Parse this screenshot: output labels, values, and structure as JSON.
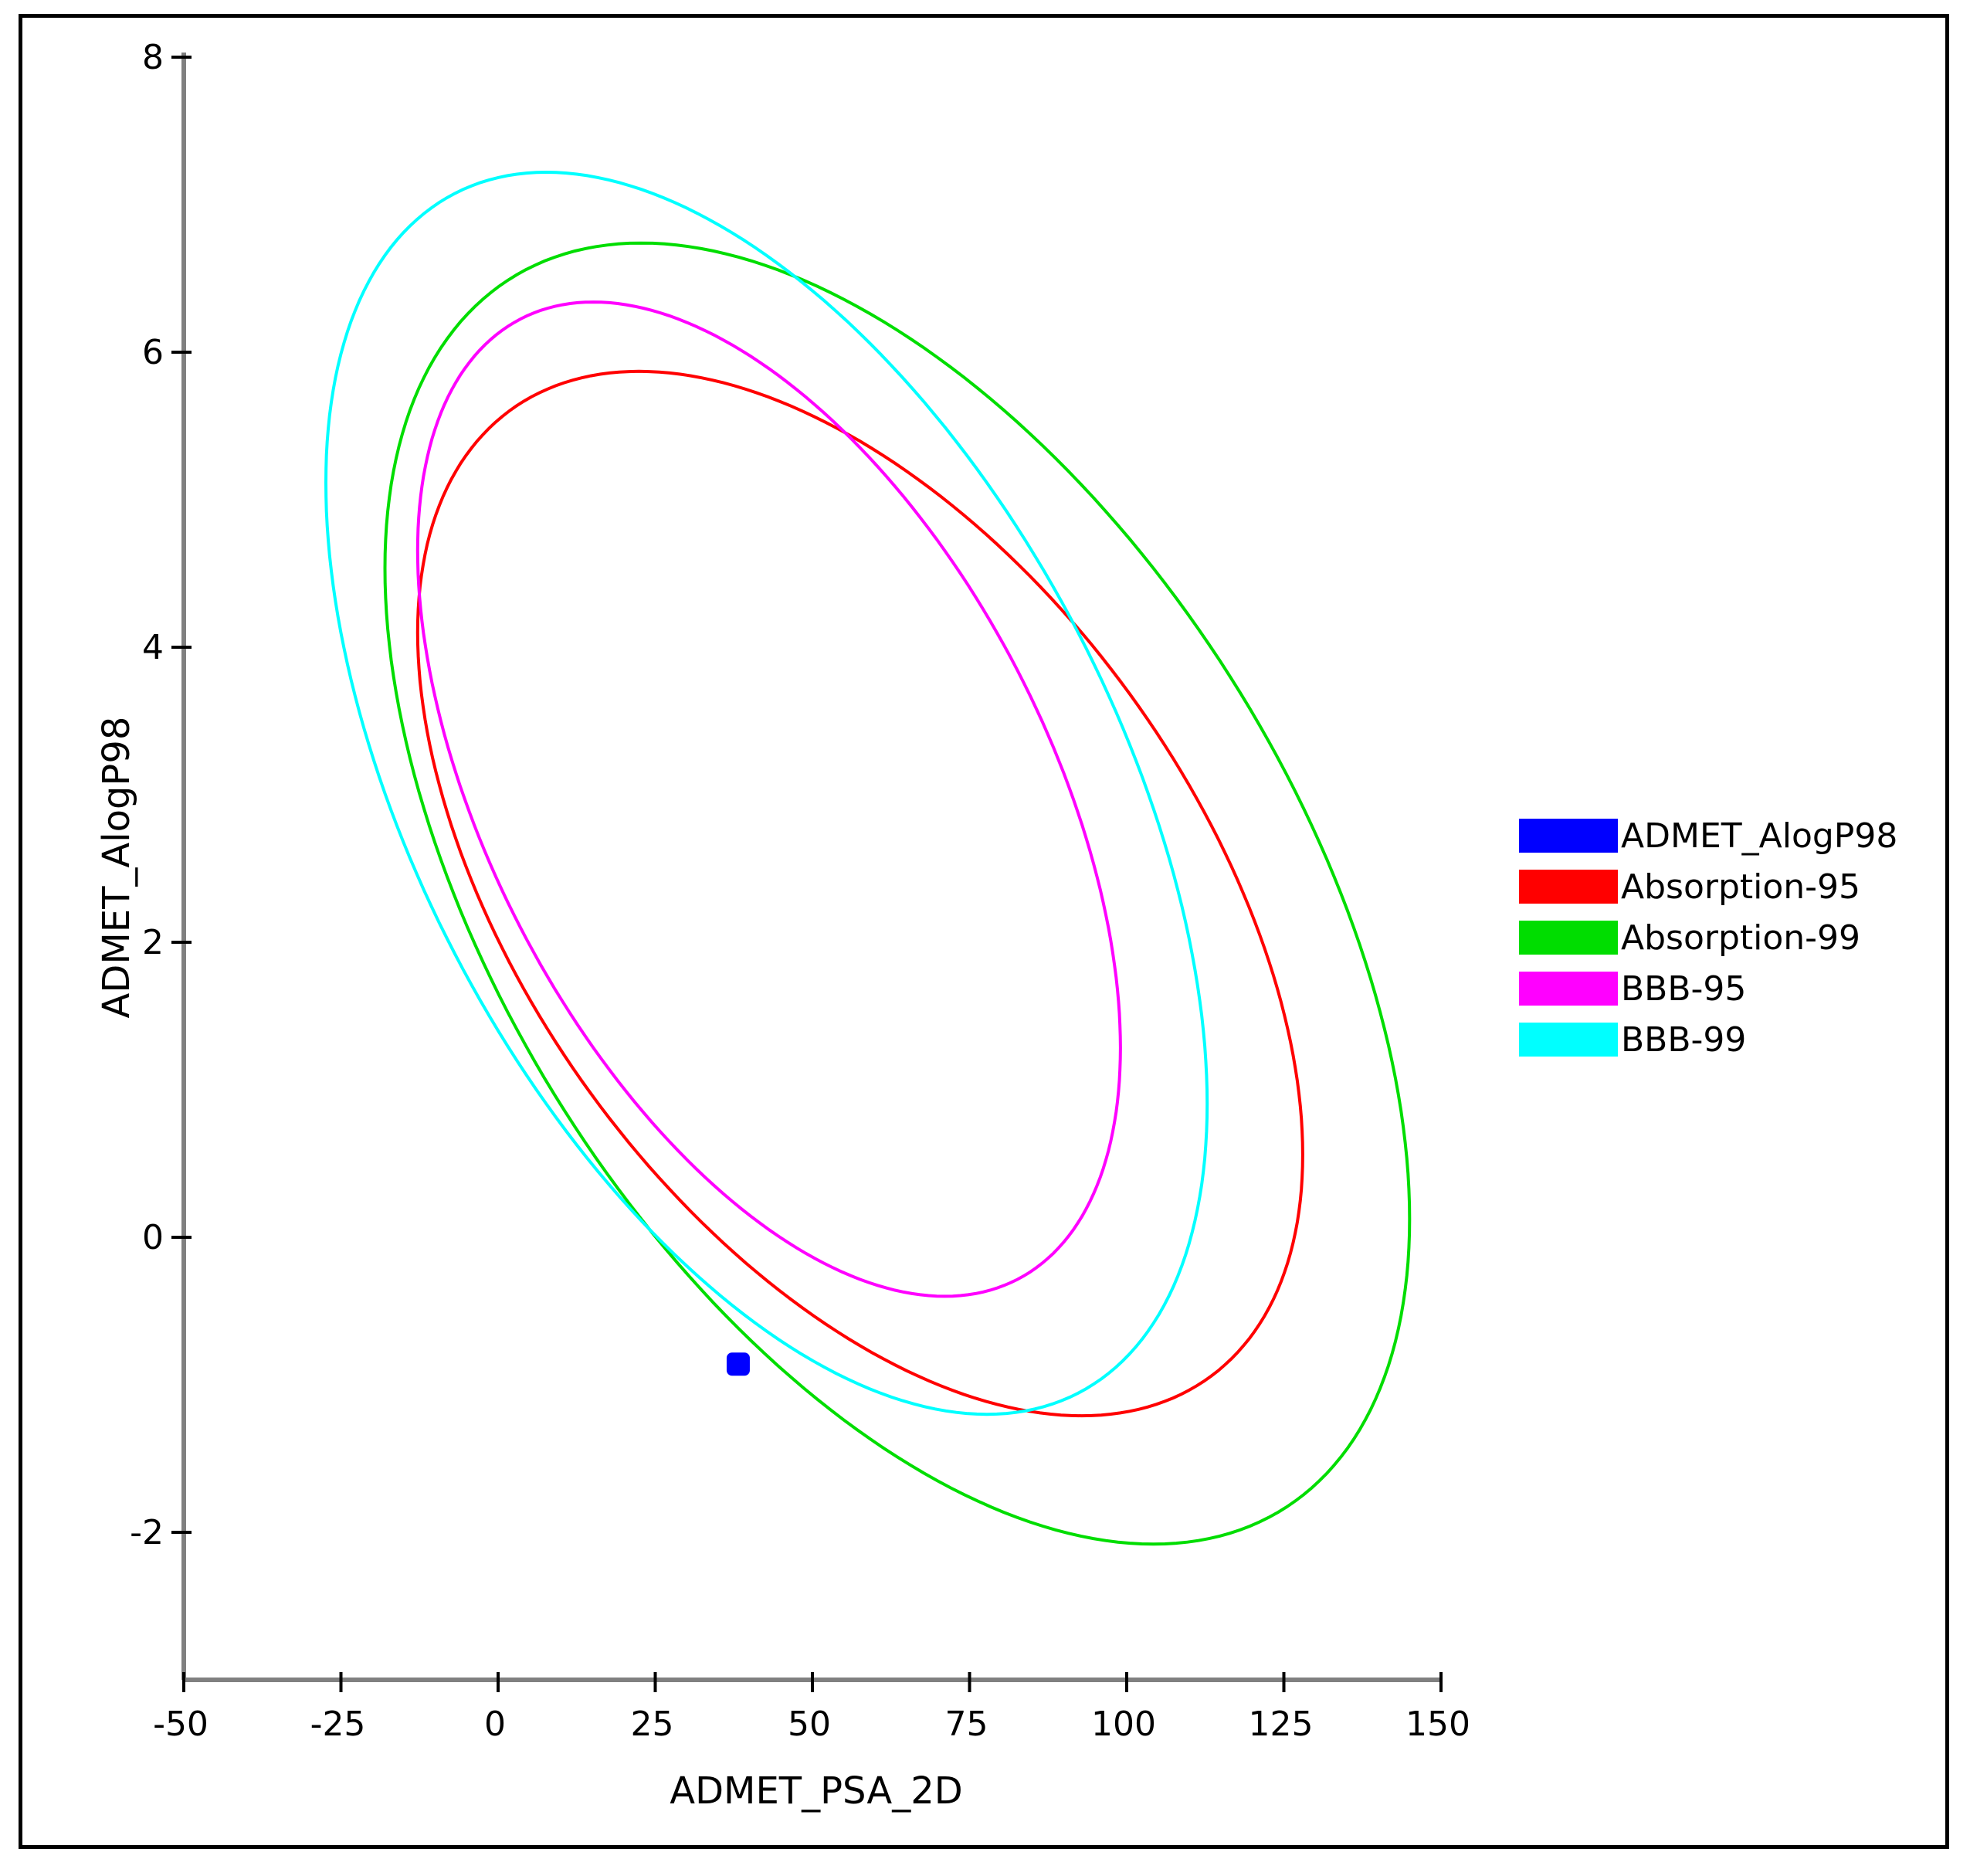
{
  "chart_data": {
    "type": "scatter",
    "title": "",
    "xlabel": "ADMET_PSA_2D",
    "ylabel": "ADMET_AlogP98",
    "xlim": [
      -50,
      150
    ],
    "ylim": [
      -3,
      8
    ],
    "x_ticks": [
      -50,
      -25,
      0,
      25,
      50,
      75,
      100,
      125,
      150
    ],
    "x_tick_labels": [
      "-50",
      "-25",
      "0",
      "25",
      "50",
      "75",
      "100",
      "125",
      "150"
    ],
    "y_ticks": [
      -2,
      0,
      2,
      4,
      6,
      8
    ],
    "y_tick_labels": [
      "-2",
      "0",
      "2",
      "4",
      "6",
      "8"
    ],
    "grid": false,
    "legend_position": "right",
    "series": [
      {
        "name": "ADMET_AlogP98",
        "kind": "points",
        "color": "#0000ff",
        "points": [
          {
            "x": 38.2,
            "y": -0.86
          }
        ]
      },
      {
        "name": "Absorption-95",
        "kind": "ellipse",
        "color": "#ff0000",
        "ellipse": {
          "cx": 57.6,
          "cy": 2.33,
          "x_extent": 70.4,
          "y_extent": 3.54,
          "corr": -0.5
        }
      },
      {
        "name": "Absorption-99",
        "kind": "ellipse",
        "color": "#00dd00",
        "ellipse": {
          "cx": 63.5,
          "cy": 2.33,
          "x_extent": 81.5,
          "y_extent": 4.41,
          "corr": -0.5
        }
      },
      {
        "name": "BBB-95",
        "kind": "ellipse",
        "color": "#ff00ff",
        "ellipse": {
          "cx": 43.1,
          "cy": 2.97,
          "x_extent": 55.9,
          "y_extent": 3.37,
          "corr": -0.5
        }
      },
      {
        "name": "BBB-99",
        "kind": "ellipse",
        "color": "#00ffff",
        "ellipse": {
          "cx": 42.7,
          "cy": 3.01,
          "x_extent": 70.1,
          "y_extent": 4.21,
          "corr": -0.5
        }
      }
    ]
  }
}
